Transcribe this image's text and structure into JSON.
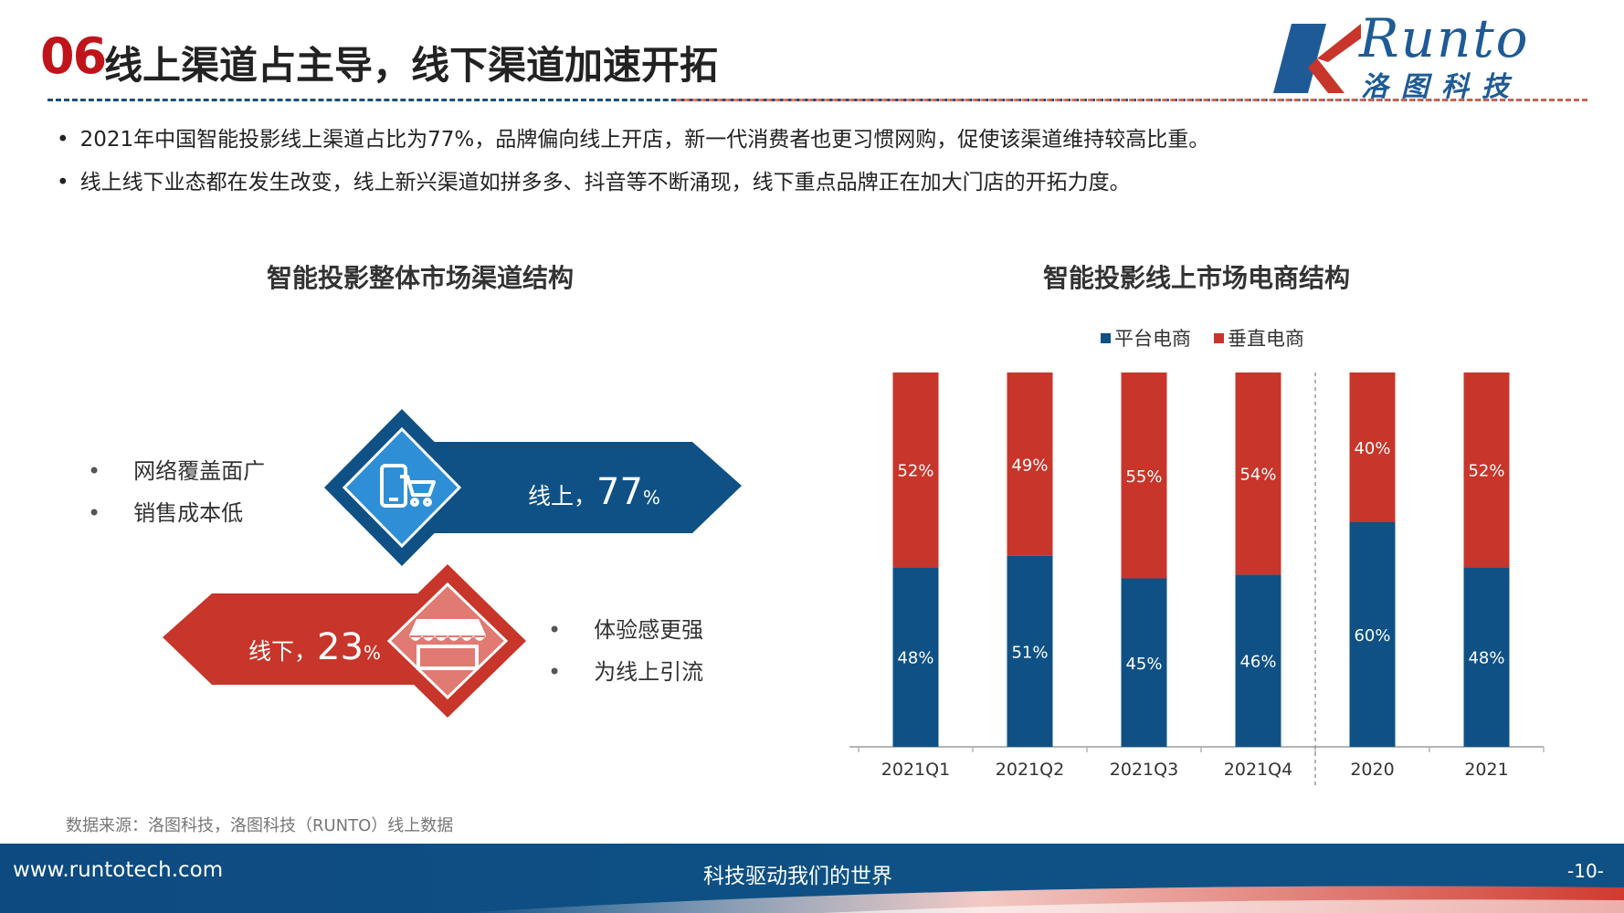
{
  "header": {
    "section_num": "06",
    "title": "线上渠道占主导，线下渠道加速开拓",
    "logo_en": "Runto",
    "logo_cn": "洛图科技"
  },
  "bullets": [
    "2021年中国智能投影线上渠道占比为77%，品牌偏向线上开店，新一代消费者也更习惯网购，促使该渠道维持较高比重。",
    "线上线下业态都在发生改变，线上新兴渠道如拼多多、抖音等不断涌现，线下重点品牌正在加大门店的开拓力度。"
  ],
  "left": {
    "title": "智能投影整体市场渠道结构",
    "online": {
      "label": "线上，",
      "value": "77",
      "unit": "%",
      "features": [
        "网络覆盖面广",
        "销售成本低"
      ],
      "icon": "mobile-cart-icon"
    },
    "offline": {
      "label": "线下，",
      "value": "23",
      "unit": "%",
      "features": [
        "体验感更强",
        "为线上引流"
      ],
      "icon": "storefront-icon"
    }
  },
  "right": {
    "title": "智能投影线上市场电商结构"
  },
  "chart_data": {
    "type": "bar",
    "stacked": true,
    "percent_stacked": true,
    "title": "智能投影线上市场电商结构",
    "categories": [
      "2021Q1",
      "2021Q2",
      "2021Q3",
      "2021Q4",
      "2020",
      "2021"
    ],
    "series": [
      {
        "name": "平台电商",
        "color": "#0f5185",
        "values": [
          48,
          51,
          45,
          46,
          60,
          48
        ]
      },
      {
        "name": "垂直电商",
        "color": "#c8352a",
        "values": [
          52,
          49,
          55,
          54,
          40,
          52
        ]
      }
    ],
    "value_suffix": "%",
    "legend_position": "top",
    "ylim": [
      0,
      100
    ],
    "divider_after_category": "2021Q4",
    "grid": false
  },
  "footer": {
    "source": "数据来源：洛图科技，洛图科技（RUNTO）线上数据",
    "url": "www.runtotech.com",
    "slogan": "科技驱动我们的世界",
    "page": "-10-"
  },
  "colors": {
    "blue": "#0f5185",
    "red": "#c8352a",
    "title_red": "#c0141b"
  }
}
